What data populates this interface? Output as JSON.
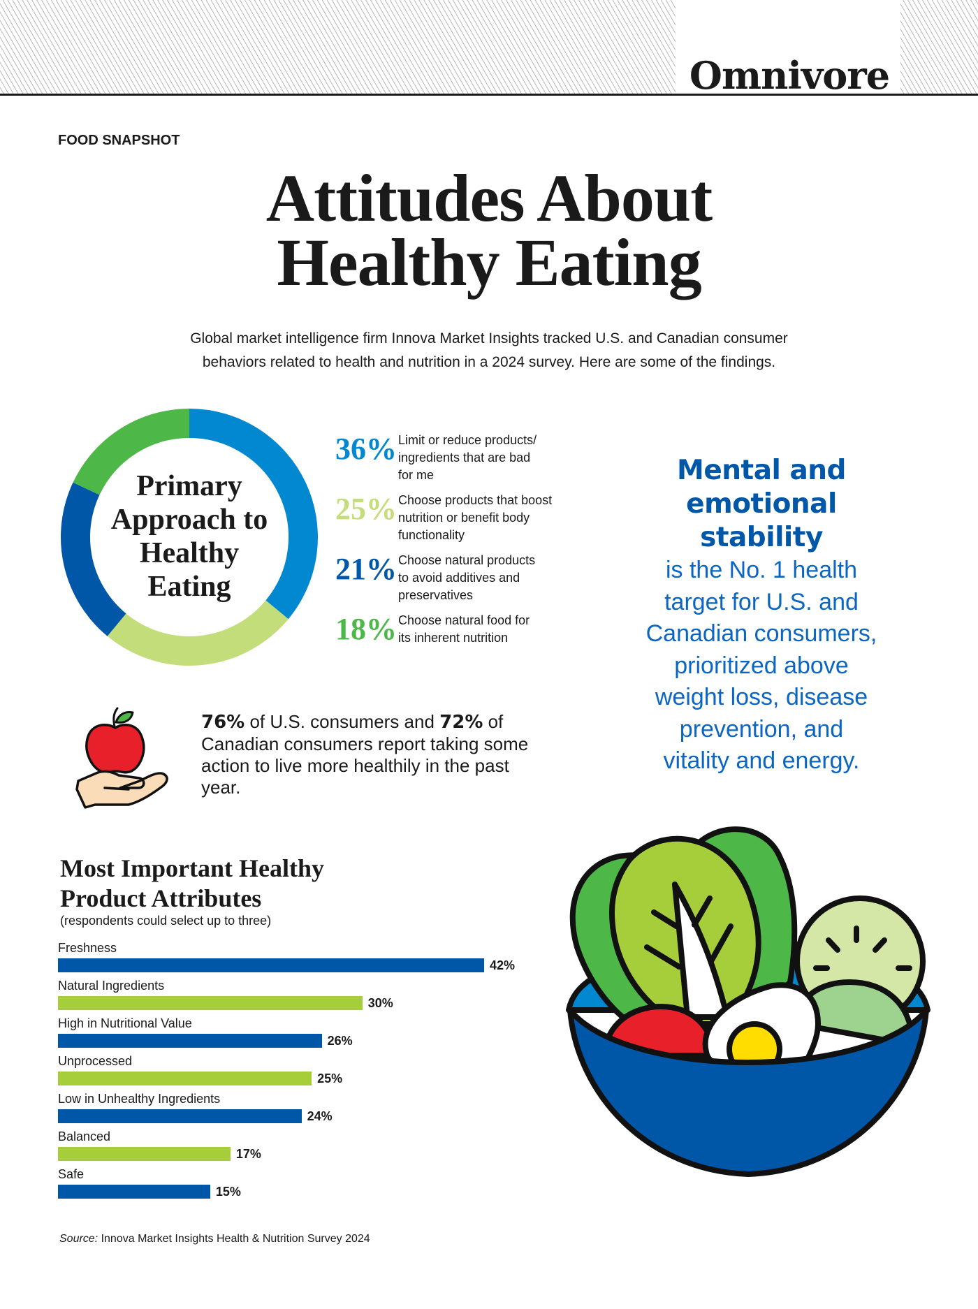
{
  "header": {
    "brand": "Omnivore"
  },
  "kicker": "FOOD SNAPSHOT",
  "title": {
    "line1": "Attitudes About",
    "line2": "Healthy Eating"
  },
  "intro": {
    "line1": "Global market intelligence firm Innova Market Insights tracked U.S. and Canadian consumer",
    "line2": "behaviors related to health and nutrition in a 2024 survey. Here are some of the findings."
  },
  "donut": {
    "center_label": [
      "Primary",
      "Approach to",
      "Healthy",
      "Eating"
    ],
    "items": [
      {
        "pct": "36%",
        "color": "#0288d1",
        "text": [
          "Limit or reduce products/",
          "ingredients that are bad",
          "for me"
        ]
      },
      {
        "pct": "25%",
        "color": "#c3dd7a",
        "text": [
          "Choose products that boost",
          "nutrition or benefit body",
          "functionality"
        ]
      },
      {
        "pct": "21%",
        "color": "#0057a8",
        "text": [
          "Choose natural products",
          "to avoid additives and",
          "preservatives"
        ]
      },
      {
        "pct": "18%",
        "color": "#4db748",
        "text": [
          "Choose natural food for",
          "its inherent nutrition"
        ]
      }
    ]
  },
  "callout": {
    "headline": [
      "Mental and",
      "emotional",
      "stability"
    ],
    "body": [
      "is the No. 1 health",
      "target for U.S. and",
      "Canadian consumers,",
      "prioritized above",
      "weight loss, disease",
      "prevention, and",
      "vitality and energy."
    ]
  },
  "stat": {
    "us_pct": "76%",
    "text_a": " of U.S. consumers and ",
    "ca_pct": "72%",
    "text_b": " of Canadian consumers report taking some action to live more healthily in the past year."
  },
  "bars": {
    "title_line1": "Most Important Healthy",
    "title_line2": "Product Attributes",
    "subtitle": "(respondents could select up to three)"
  },
  "source": {
    "label": "Source:",
    "text": " Innova Market Insights Health & Nutrition Survey 2024"
  },
  "colors": {
    "dark_blue": "#0057a8",
    "light_blue": "#0288d1",
    "lime": "#a6cd3a",
    "light_green": "#c3dd7a",
    "green": "#4db748",
    "text": "#1a1a1a"
  },
  "chart_data": [
    {
      "type": "pie",
      "title": "Primary Approach to Healthy Eating",
      "categories": [
        "Limit or reduce products/ingredients that are bad for me",
        "Choose products that boost nutrition or benefit body functionality",
        "Choose natural products to avoid additives and preservatives",
        "Choose natural food for its inherent nutrition"
      ],
      "values": [
        36,
        25,
        21,
        18
      ],
      "colors": [
        "#0288d1",
        "#c3dd7a",
        "#0057a8",
        "#4db748"
      ],
      "donut": true,
      "legend_position": "right"
    },
    {
      "type": "bar",
      "orientation": "horizontal",
      "title": "Most Important Healthy Product Attributes",
      "subtitle": "(respondents could select up to three)",
      "categories": [
        "Freshness",
        "Natural Ingredients",
        "High in Nutritional Value",
        "Unprocessed",
        "Low in Unhealthy Ingredients",
        "Balanced",
        "Safe"
      ],
      "values": [
        42,
        30,
        26,
        25,
        24,
        17,
        15
      ],
      "value_labels": [
        "42%",
        "30%",
        "26%",
        "25%",
        "24%",
        "17%",
        "15%"
      ],
      "colors": [
        "#0057a8",
        "#a6cd3a",
        "#0057a8",
        "#a6cd3a",
        "#0057a8",
        "#a6cd3a",
        "#0057a8"
      ],
      "xlabel": "",
      "ylabel": "",
      "grid": false,
      "unit": "%"
    }
  ]
}
